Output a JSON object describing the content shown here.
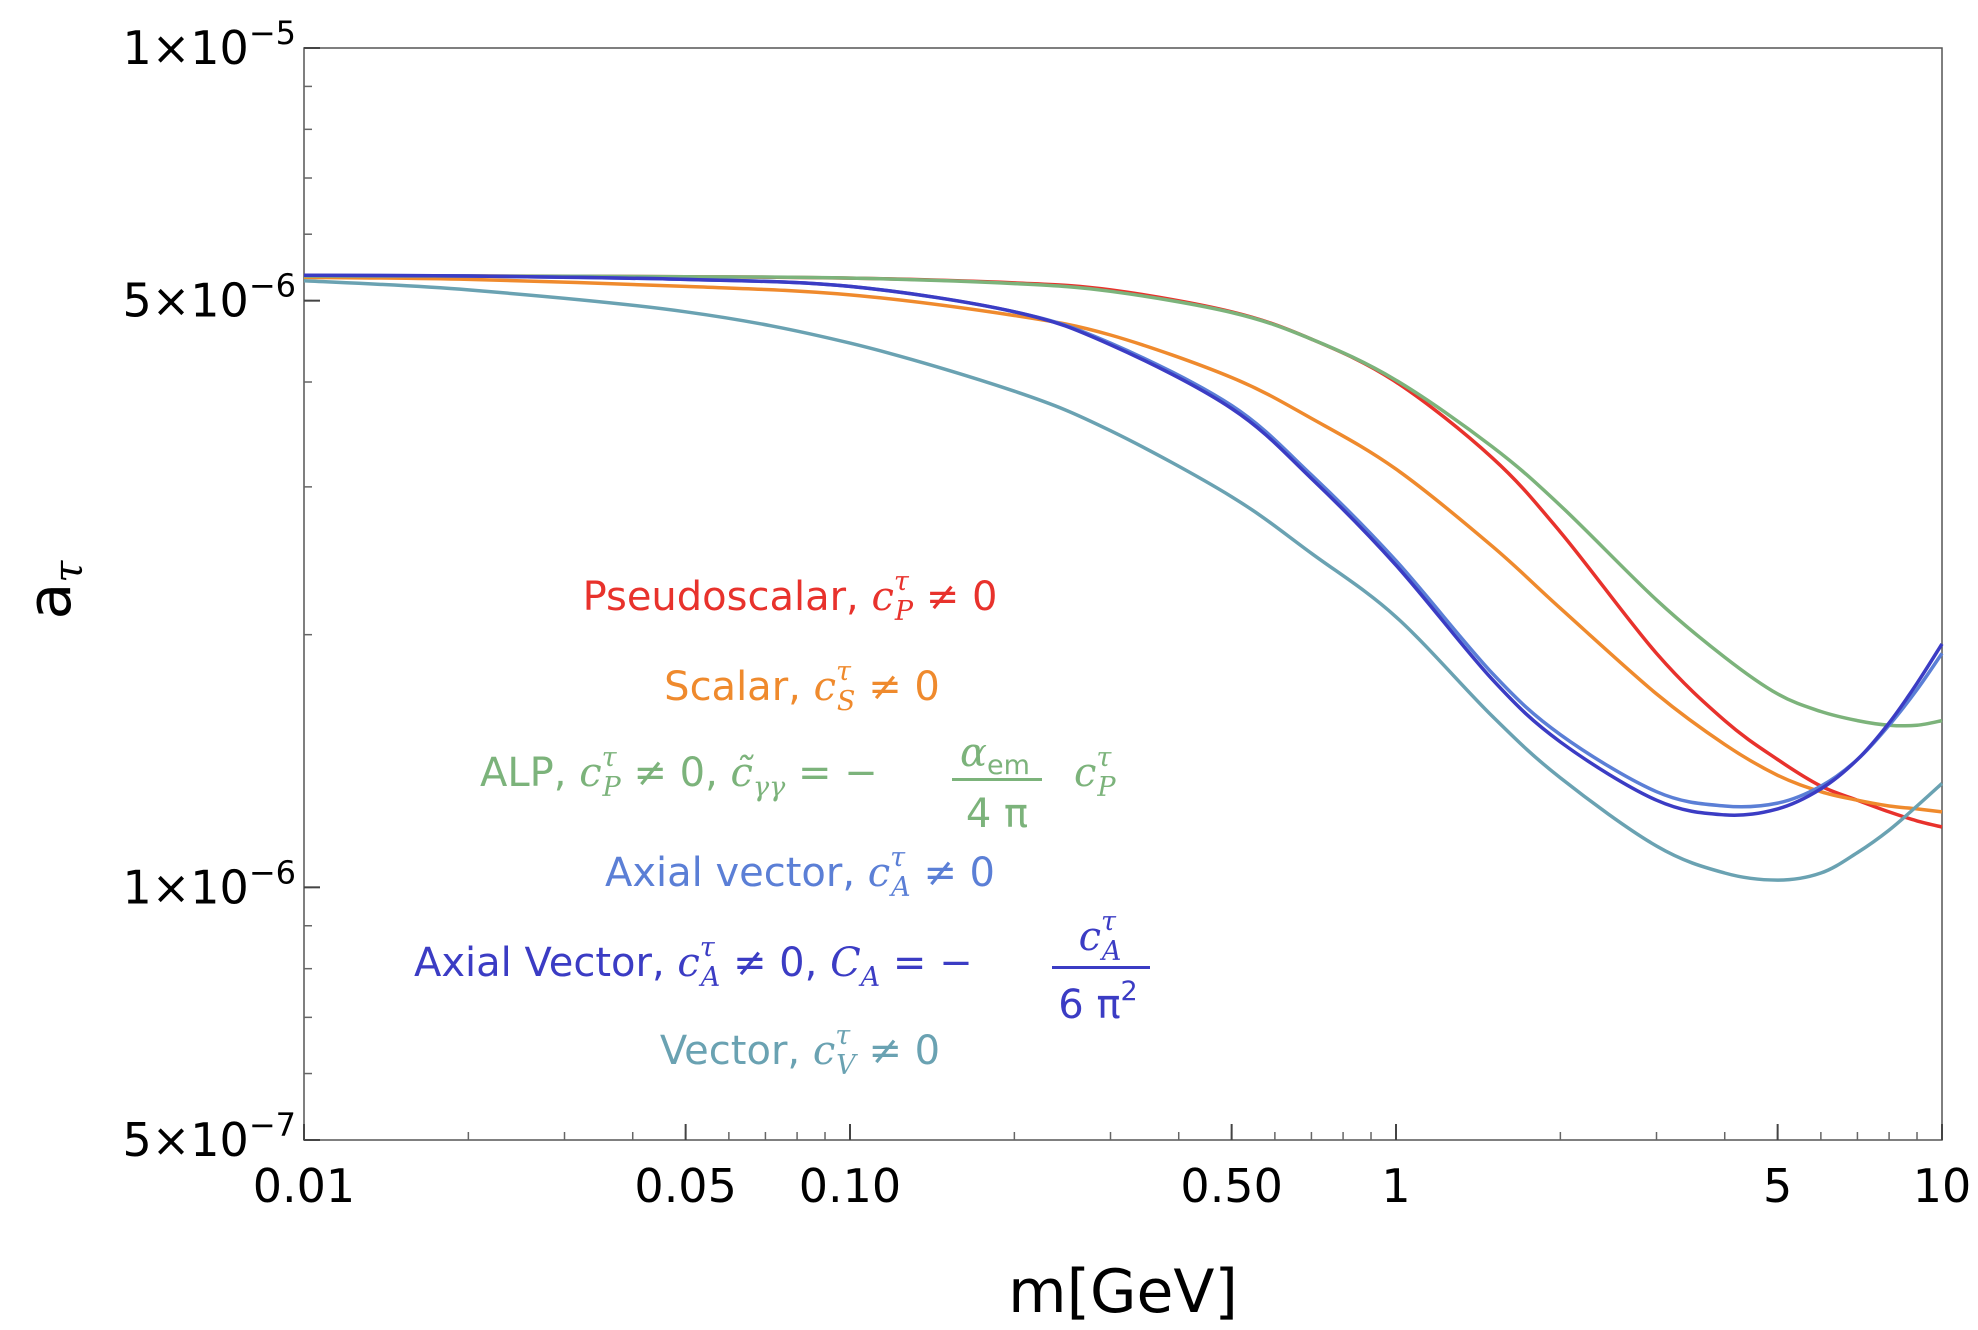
{
  "chart_data": {
    "type": "line",
    "xscale": "log",
    "yscale": "log",
    "xlabel": "m[GeV]",
    "ylabel": "a",
    "ylabel_sub": "τ",
    "xlim": [
      0.01,
      10
    ],
    "ylim": [
      5e-07,
      1e-05
    ],
    "x_ticks": [
      {
        "value": 0.01,
        "label": "0.01"
      },
      {
        "value": 0.05,
        "label": "0.05"
      },
      {
        "value": 0.1,
        "label": "0.10"
      },
      {
        "value": 0.5,
        "label": "0.50"
      },
      {
        "value": 1,
        "label": "1"
      },
      {
        "value": 5,
        "label": "5"
      },
      {
        "value": 10,
        "label": "10"
      }
    ],
    "y_ticks": [
      {
        "value": 1e-05,
        "mant": "1",
        "exp": "−5"
      },
      {
        "value": 5e-06,
        "mant": "5",
        "exp": "−6"
      },
      {
        "value": 1e-06,
        "mant": "1",
        "exp": "−6"
      },
      {
        "value": 5e-07,
        "mant": "5",
        "exp": "−7"
      }
    ],
    "x": [
      0.01,
      0.02,
      0.05,
      0.1,
      0.2,
      0.3,
      0.5,
      0.7,
      1,
      1.5,
      2,
      3,
      4,
      5,
      6,
      7,
      8,
      9,
      10
    ],
    "series": [
      {
        "name": "Pseudoscalar",
        "color": "#e8322c",
        "values": [
          5.35e-06,
          5.35e-06,
          5.34e-06,
          5.32e-06,
          5.25e-06,
          5.15e-06,
          4.85e-06,
          4.5e-06,
          4e-06,
          3.25e-06,
          2.65e-06,
          1.9e-06,
          1.58e-06,
          1.42e-06,
          1.32e-06,
          1.27e-06,
          1.23e-06,
          1.2e-06,
          1.18e-06
        ]
      },
      {
        "name": "Scalar",
        "color": "#ef8a2d",
        "values": [
          5.33e-06,
          5.3e-06,
          5.2e-06,
          5.08e-06,
          4.8e-06,
          4.55e-06,
          4.05e-06,
          3.62e-06,
          3.15e-06,
          2.55e-06,
          2.15e-06,
          1.7e-06,
          1.48e-06,
          1.36e-06,
          1.3e-06,
          1.27e-06,
          1.25e-06,
          1.24e-06,
          1.23e-06
        ]
      },
      {
        "name": "ALP",
        "color": "#7cb37b",
        "values": [
          5.35e-06,
          5.35e-06,
          5.34e-06,
          5.32e-06,
          5.24e-06,
          5.13e-06,
          4.84e-06,
          4.5e-06,
          4.02e-06,
          3.35e-06,
          2.85e-06,
          2.2e-06,
          1.88e-06,
          1.7e-06,
          1.62e-06,
          1.58e-06,
          1.56e-06,
          1.56e-06,
          1.58e-06
        ]
      },
      {
        "name": "Axial vector",
        "color": "#5b7fd6",
        "values": [
          5.36e-06,
          5.35e-06,
          5.3e-06,
          5.2e-06,
          4.85e-06,
          4.45e-06,
          3.75e-06,
          3.1e-06,
          2.45e-06,
          1.8e-06,
          1.52e-06,
          1.3e-06,
          1.25e-06,
          1.26e-06,
          1.32e-06,
          1.42e-06,
          1.56e-06,
          1.72e-06,
          1.9e-06
        ]
      },
      {
        "name": "Axial Vector",
        "color": "#3b3cc4",
        "values": [
          5.36e-06,
          5.35e-06,
          5.3e-06,
          5.2e-06,
          4.85e-06,
          4.43e-06,
          3.72e-06,
          3.07e-06,
          2.42e-06,
          1.77e-06,
          1.49e-06,
          1.27e-06,
          1.22e-06,
          1.24e-06,
          1.31e-06,
          1.42e-06,
          1.57e-06,
          1.75e-06,
          1.95e-06
        ]
      },
      {
        "name": "Vector",
        "color": "#6aa2b2",
        "values": [
          5.28e-06,
          5.15e-06,
          4.85e-06,
          4.45e-06,
          3.9e-06,
          3.5e-06,
          2.92e-06,
          2.5e-06,
          2.1e-06,
          1.6e-06,
          1.35e-06,
          1.12e-06,
          1.04e-06,
          1.02e-06,
          1.04e-06,
          1.1e-06,
          1.17e-06,
          1.25e-06,
          1.33e-06
        ]
      }
    ]
  },
  "legend": {
    "pseudoscalar": {
      "label": "Pseudoscalar,",
      "c": "c",
      "sup": "τ",
      "sub": "P",
      "rel": " ≠ 0"
    },
    "scalar": {
      "label": "Scalar,",
      "c": "c",
      "sup": "τ",
      "sub": "S",
      "rel": " ≠ 0"
    },
    "alp": {
      "label": "ALP,",
      "c": "c",
      "sup": "τ",
      "sub": "P",
      "rel": " ≠ 0,",
      "c2": "c̃",
      "sub2": "γγ",
      "eq": " = −",
      "num": "α",
      "num_sub": "em",
      "den": "4 π",
      "c3": "c",
      "sup3": "τ",
      "sub3": "P"
    },
    "axial_vector": {
      "label": "Axial vector,",
      "c": "c",
      "sup": "τ",
      "sub": "A",
      "rel": " ≠ 0"
    },
    "axial_vector2": {
      "label": "Axial Vector,",
      "c": "c",
      "sup": "τ",
      "sub": "A",
      "rel": " ≠ 0,",
      "C": "C",
      "Csub": "A",
      "eq": " = −",
      "num_c": "c",
      "num_sup": "τ",
      "num_sub": "A",
      "den": "6 π",
      "den_sup": "2"
    },
    "vector": {
      "label": "Vector,",
      "c": "c",
      "sup": "τ",
      "sub": "V",
      "rel": " ≠ 0"
    }
  }
}
